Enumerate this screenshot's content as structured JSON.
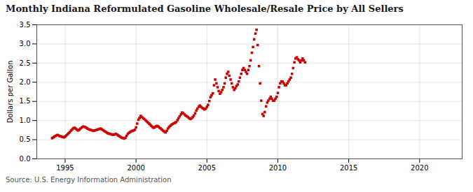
{
  "chart_data": {
    "type": "scatter",
    "title": "Monthly Indiana Reformulated Gasoline Wholesale/Resale Price by All Sellers",
    "ylabel": "Dollars per Gallon",
    "caption": "Source: U.S. Energy Information Administration",
    "color": "#cc0000",
    "marker": "square",
    "grid": true,
    "xlim": [
      1993.0,
      2023.0
    ],
    "ylim": [
      0.0,
      3.5
    ],
    "xticks": [
      1995,
      2000,
      2005,
      2010,
      2015,
      2020
    ],
    "yticks": [
      {
        "value": 0.0,
        "label": "0.0"
      },
      0.5,
      {
        "value": 1.0,
        "label": "1.0"
      },
      1.5,
      {
        "value": 2.0,
        "label": "2.0"
      },
      2.5,
      {
        "value": 3.0,
        "label": "3.0"
      },
      3.5
    ],
    "x": [
      1994.08,
      1994.17,
      1994.25,
      1994.33,
      1994.42,
      1994.5,
      1994.58,
      1994.67,
      1994.75,
      1994.83,
      1994.92,
      1995.0,
      1995.08,
      1995.17,
      1995.25,
      1995.33,
      1995.42,
      1995.5,
      1995.58,
      1995.67,
      1995.75,
      1995.83,
      1995.92,
      1996.0,
      1996.08,
      1996.17,
      1996.25,
      1996.33,
      1996.42,
      1996.5,
      1996.58,
      1996.67,
      1996.75,
      1996.83,
      1996.92,
      1997.0,
      1997.08,
      1997.17,
      1997.25,
      1997.33,
      1997.42,
      1997.5,
      1997.58,
      1997.67,
      1997.75,
      1997.83,
      1997.92,
      1998.0,
      1998.08,
      1998.17,
      1998.25,
      1998.33,
      1998.42,
      1998.5,
      1998.58,
      1998.67,
      1998.75,
      1998.83,
      1998.92,
      1999.0,
      1999.08,
      1999.17,
      1999.25,
      1999.33,
      1999.42,
      1999.5,
      1999.58,
      1999.67,
      1999.75,
      1999.83,
      1999.92,
      2000.0,
      2000.08,
      2000.17,
      2000.25,
      2000.33,
      2000.42,
      2000.5,
      2000.58,
      2000.67,
      2000.75,
      2000.83,
      2000.92,
      2001.0,
      2001.08,
      2001.17,
      2001.25,
      2001.33,
      2001.42,
      2001.5,
      2001.58,
      2001.67,
      2001.75,
      2001.83,
      2001.92,
      2002.0,
      2002.08,
      2002.17,
      2002.25,
      2002.33,
      2002.42,
      2002.5,
      2002.58,
      2002.67,
      2002.75,
      2002.83,
      2002.92,
      2003.0,
      2003.08,
      2003.17,
      2003.25,
      2003.33,
      2003.42,
      2003.5,
      2003.58,
      2003.67,
      2003.75,
      2003.83,
      2003.92,
      2004.0,
      2004.08,
      2004.17,
      2004.25,
      2004.33,
      2004.42,
      2004.5,
      2004.58,
      2004.67,
      2004.75,
      2004.83,
      2004.92,
      2005.0,
      2005.08,
      2005.17,
      2005.25,
      2005.33,
      2005.42,
      2005.5,
      2005.58,
      2005.67,
      2005.75,
      2005.83,
      2005.92,
      2006.0,
      2006.08,
      2006.17,
      2006.25,
      2006.33,
      2006.42,
      2006.5,
      2006.58,
      2006.67,
      2006.75,
      2006.83,
      2006.92,
      2007.0,
      2007.08,
      2007.17,
      2007.25,
      2007.33,
      2007.42,
      2007.5,
      2007.58,
      2007.67,
      2007.75,
      2007.83,
      2007.92,
      2008.0,
      2008.08,
      2008.17,
      2008.25,
      2008.33,
      2008.42,
      2008.5,
      2008.58,
      2008.67,
      2008.75,
      2008.83,
      2008.92,
      2009.0,
      2009.08,
      2009.17,
      2009.25,
      2009.33,
      2009.42,
      2009.5,
      2009.58,
      2009.67,
      2009.75,
      2009.83,
      2009.92,
      2010.0,
      2010.08,
      2010.17,
      2010.25,
      2010.33,
      2010.42,
      2010.5,
      2010.58,
      2010.67,
      2010.75,
      2010.83,
      2010.92,
      2011.0,
      2011.08,
      2011.17,
      2011.25,
      2011.33,
      2011.42,
      2011.5,
      2011.58,
      2011.67,
      2011.75,
      2011.83,
      2011.92
    ],
    "values": [
      0.54,
      0.56,
      0.58,
      0.6,
      0.62,
      0.62,
      0.6,
      0.59,
      0.58,
      0.57,
      0.56,
      0.58,
      0.61,
      0.64,
      0.67,
      0.7,
      0.74,
      0.77,
      0.8,
      0.81,
      0.79,
      0.76,
      0.74,
      0.76,
      0.79,
      0.82,
      0.84,
      0.84,
      0.83,
      0.81,
      0.79,
      0.77,
      0.76,
      0.75,
      0.74,
      0.73,
      0.74,
      0.75,
      0.76,
      0.77,
      0.78,
      0.79,
      0.77,
      0.75,
      0.73,
      0.71,
      0.69,
      0.67,
      0.66,
      0.65,
      0.64,
      0.63,
      0.63,
      0.64,
      0.65,
      0.63,
      0.61,
      0.59,
      0.57,
      0.55,
      0.54,
      0.53,
      0.55,
      0.6,
      0.65,
      0.68,
      0.7,
      0.72,
      0.73,
      0.74,
      0.76,
      0.82,
      0.92,
      1.02,
      1.07,
      1.12,
      1.09,
      1.06,
      1.04,
      1.01,
      0.98,
      0.95,
      0.92,
      0.89,
      0.86,
      0.83,
      0.81,
      0.83,
      0.85,
      0.86,
      0.84,
      0.81,
      0.79,
      0.76,
      0.73,
      0.71,
      0.69,
      0.73,
      0.79,
      0.83,
      0.86,
      0.89,
      0.91,
      0.93,
      0.94,
      0.96,
      1.01,
      1.06,
      1.11,
      1.16,
      1.21,
      1.19,
      1.16,
      1.13,
      1.11,
      1.09,
      1.06,
      1.04,
      1.06,
      1.09,
      1.13,
      1.19,
      1.26,
      1.31,
      1.36,
      1.39,
      1.36,
      1.33,
      1.31,
      1.29,
      1.31,
      1.36,
      1.41,
      1.51,
      1.61,
      1.66,
      1.71,
      1.92,
      2.07,
      1.97,
      1.87,
      1.77,
      1.7,
      1.74,
      1.8,
      1.87,
      1.97,
      2.12,
      2.22,
      2.27,
      2.17,
      2.07,
      1.97,
      1.87,
      1.8,
      1.84,
      1.9,
      1.94,
      2.02,
      2.12,
      2.22,
      2.32,
      2.37,
      2.32,
      2.27,
      2.22,
      2.32,
      2.42,
      2.57,
      2.77,
      2.92,
      3.12,
      3.27,
      3.37,
      2.97,
      2.42,
      1.97,
      1.52,
      1.17,
      1.12,
      1.22,
      1.37,
      1.47,
      1.52,
      1.57,
      1.62,
      1.57,
      1.52,
      1.52,
      1.57,
      1.62,
      1.72,
      1.87,
      1.97,
      2.02,
      2.02,
      1.97,
      1.92,
      1.92,
      1.97,
      2.02,
      2.07,
      2.12,
      2.22,
      2.37,
      2.52,
      2.62,
      2.65,
      2.6,
      2.57,
      2.52,
      2.57,
      2.62,
      2.57,
      2.52
    ]
  }
}
